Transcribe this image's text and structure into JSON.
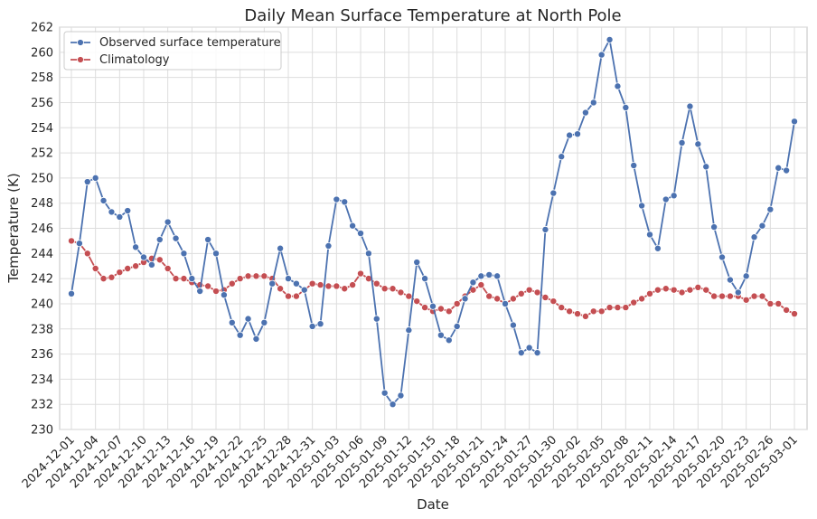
{
  "chart_data": {
    "type": "line",
    "title": "Daily Mean Surface Temperature at North Pole",
    "xlabel": "Date",
    "ylabel": "Temperature (K)",
    "ylim": [
      230,
      262
    ],
    "yticks": [
      230,
      232,
      234,
      236,
      238,
      240,
      242,
      244,
      246,
      248,
      250,
      252,
      254,
      256,
      258,
      260,
      262
    ],
    "start_date": "2024-12-01",
    "num_days": 91,
    "xtick_labels": [
      "2024-12-01",
      "2024-12-04",
      "2024-12-07",
      "2024-12-10",
      "2024-12-13",
      "2024-12-16",
      "2024-12-19",
      "2024-12-22",
      "2024-12-25",
      "2024-12-28",
      "2024-12-31",
      "2025-01-03",
      "2025-01-06",
      "2025-01-09",
      "2025-01-12",
      "2025-01-15",
      "2025-01-18",
      "2025-01-21",
      "2025-01-24",
      "2025-01-27",
      "2025-01-30",
      "2025-02-02",
      "2025-02-05",
      "2025-02-08",
      "2025-02-11",
      "2025-02-14",
      "2025-02-17",
      "2025-02-20",
      "2025-02-23",
      "2025-02-26",
      "2025-03-01"
    ],
    "xtick_step_days": 3,
    "grid": true,
    "legend_position": "top-left",
    "series": [
      {
        "name": "Observed surface temperature",
        "color": "#4c72b0",
        "values": [
          240.8,
          244.8,
          249.7,
          250.0,
          248.2,
          247.3,
          246.9,
          247.4,
          244.5,
          243.7,
          243.1,
          245.1,
          246.5,
          245.2,
          244.0,
          242.0,
          241.0,
          245.1,
          244.0,
          240.7,
          238.5,
          237.5,
          238.8,
          237.2,
          238.5,
          241.6,
          244.4,
          242.0,
          241.6,
          241.1,
          238.2,
          238.4,
          244.6,
          248.3,
          248.1,
          246.2,
          245.6,
          244.0,
          238.8,
          232.9,
          232.0,
          232.7,
          237.9,
          243.3,
          242.0,
          239.8,
          237.5,
          237.1,
          238.2,
          240.4,
          241.7,
          242.2,
          242.3,
          242.2,
          240.0,
          238.3,
          236.1,
          236.5,
          236.1,
          245.9,
          248.8,
          251.7,
          253.4,
          253.5,
          255.2,
          256.0,
          259.8,
          261.0,
          257.3,
          255.6,
          251.0,
          247.8,
          245.5,
          244.4,
          248.3,
          248.6,
          252.8,
          255.7,
          252.7,
          250.9,
          246.1,
          243.7,
          241.9,
          240.9,
          242.2,
          245.3,
          246.2,
          247.5,
          250.8,
          250.6,
          254.5
        ]
      },
      {
        "name": "Climatology",
        "color": "#c44e52",
        "values": [
          245.0,
          244.8,
          244.0,
          242.8,
          242.0,
          242.1,
          242.5,
          242.8,
          243.0,
          243.3,
          243.6,
          243.5,
          242.8,
          242.0,
          242.0,
          241.7,
          241.5,
          241.4,
          241.0,
          241.1,
          241.6,
          242.0,
          242.2,
          242.2,
          242.2,
          242.0,
          241.2,
          240.6,
          240.6,
          241.1,
          241.6,
          241.5,
          241.4,
          241.4,
          241.2,
          241.5,
          242.4,
          242.0,
          241.6,
          241.2,
          241.2,
          240.9,
          240.6,
          240.2,
          239.7,
          239.4,
          239.6,
          239.4,
          240.0,
          240.6,
          241.1,
          241.5,
          240.6,
          240.4,
          240.0,
          240.4,
          240.8,
          241.1,
          240.9,
          240.5,
          240.2,
          239.7,
          239.4,
          239.2,
          239.0,
          239.4,
          239.4,
          239.7,
          239.7,
          239.7,
          240.1,
          240.4,
          240.8,
          241.1,
          241.2,
          241.1,
          240.9,
          241.1,
          241.3,
          241.1,
          240.6,
          240.6,
          240.6,
          240.6,
          240.3,
          240.6,
          240.6,
          240.0,
          240.0,
          239.5,
          239.2
        ]
      }
    ]
  }
}
